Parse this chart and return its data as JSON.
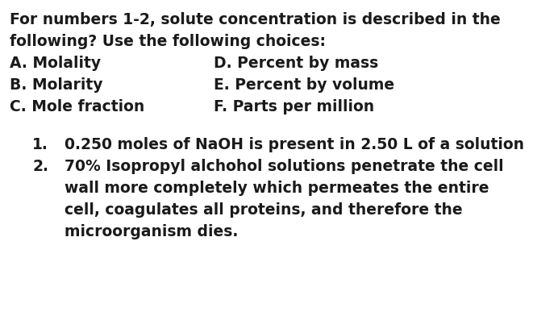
{
  "background_color": "#ffffff",
  "text_color": "#1a1a1a",
  "figsize": [
    6.92,
    3.87
  ],
  "dpi": 100,
  "header_line1": "For numbers 1-2, solute concentration is described in the",
  "header_line2": "following? Use the following choices:",
  "choices_left": [
    "A. Molality",
    "B. Molarity",
    "C. Mole fraction"
  ],
  "choices_right": [
    "D. Percent by mass",
    "E. Percent by volume",
    "F. Parts per million"
  ],
  "item1": "0.250 moles of NaOH is present in 2.50 L of a solution",
  "item2_lines": [
    "70% Isopropyl alchohol solutions penetrate the cell",
    "wall more completely which permeates the entire",
    "cell, coagulates all proteins, and therefore the",
    "microorganism dies."
  ],
  "font_size": 13.5,
  "font_weight": "bold",
  "font_family": "DejaVu Sans"
}
